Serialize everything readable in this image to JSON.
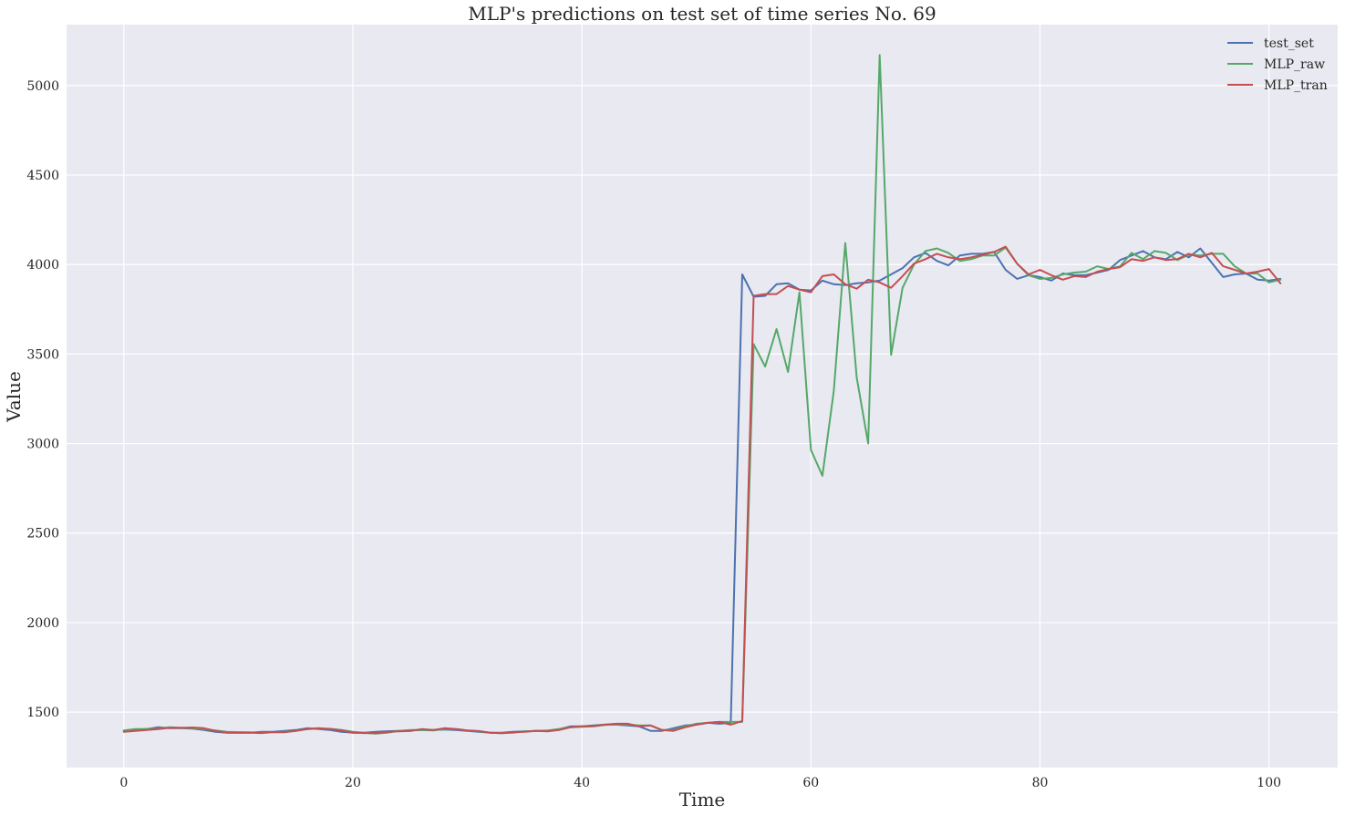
{
  "chart_data": {
    "type": "line",
    "title": "MLP's predictions on test set of time series No. 69",
    "xlabel": "Time",
    "ylabel": "Value",
    "xlim": [
      -5,
      106
    ],
    "ylim": [
      1190,
      5340
    ],
    "xticks": [
      0,
      20,
      40,
      60,
      80,
      100
    ],
    "yticks": [
      1500,
      2000,
      2500,
      3000,
      3500,
      4000,
      4500,
      5000
    ],
    "grid": true,
    "legend_position": "top-right",
    "background": "#e9e9f1",
    "x": [
      0,
      1,
      2,
      3,
      4,
      5,
      6,
      7,
      8,
      9,
      10,
      11,
      12,
      13,
      14,
      15,
      16,
      17,
      18,
      19,
      20,
      21,
      22,
      23,
      24,
      25,
      26,
      27,
      28,
      29,
      30,
      31,
      32,
      33,
      34,
      35,
      36,
      37,
      38,
      39,
      40,
      41,
      42,
      43,
      44,
      45,
      46,
      47,
      48,
      49,
      50,
      51,
      52,
      53,
      54,
      55,
      56,
      57,
      58,
      59,
      60,
      61,
      62,
      63,
      64,
      65,
      66,
      67,
      68,
      69,
      70,
      71,
      72,
      73,
      74,
      75,
      76,
      77,
      78,
      79,
      80,
      81,
      82,
      83,
      84,
      85,
      86,
      87,
      88,
      89,
      90,
      91,
      92,
      93,
      94,
      95,
      96,
      97,
      98,
      99,
      100,
      101
    ],
    "series": [
      {
        "name": "test_set",
        "color": "#4c72b0",
        "values": [
          1395,
          1400,
          1405,
          1415,
          1410,
          1410,
          1408,
          1400,
          1390,
          1385,
          1385,
          1385,
          1390,
          1390,
          1395,
          1400,
          1410,
          1405,
          1400,
          1390,
          1385,
          1385,
          1390,
          1393,
          1395,
          1398,
          1400,
          1400,
          1403,
          1400,
          1395,
          1390,
          1385,
          1385,
          1390,
          1392,
          1395,
          1395,
          1405,
          1420,
          1420,
          1425,
          1430,
          1430,
          1425,
          1420,
          1395,
          1395,
          1410,
          1425,
          1430,
          1440,
          1435,
          1440,
          3945,
          3820,
          3825,
          3890,
          3895,
          3860,
          3855,
          3910,
          3890,
          3885,
          3895,
          3900,
          3910,
          3945,
          3980,
          4040,
          4065,
          4020,
          3995,
          4050,
          4060,
          4060,
          4070,
          3970,
          3920,
          3940,
          3930,
          3910,
          3950,
          3940,
          3940,
          3955,
          3970,
          4025,
          4050,
          4075,
          4040,
          4030,
          4070,
          4040,
          4090,
          4010,
          3930,
          3945,
          3950,
          3915,
          3910,
          3920
        ]
      },
      {
        "name": "MLP_raw",
        "color": "#55a868",
        "values": [
          1398,
          1405,
          1406,
          1408,
          1415,
          1412,
          1410,
          1405,
          1398,
          1390,
          1388,
          1387,
          1385,
          1388,
          1390,
          1395,
          1405,
          1408,
          1407,
          1400,
          1390,
          1385,
          1380,
          1385,
          1395,
          1400,
          1400,
          1398,
          1405,
          1405,
          1398,
          1392,
          1385,
          1382,
          1385,
          1392,
          1395,
          1398,
          1405,
          1415,
          1418,
          1420,
          1428,
          1432,
          1430,
          1425,
          1425,
          1400,
          1400,
          1420,
          1435,
          1440,
          1445,
          1445,
          1445,
          3555,
          3430,
          3640,
          3400,
          3845,
          2965,
          2820,
          3295,
          4120,
          3370,
          3000,
          5170,
          3495,
          3870,
          4000,
          4075,
          4090,
          4065,
          4020,
          4030,
          4050,
          4050,
          4095,
          4005,
          3940,
          3920,
          3925,
          3945,
          3955,
          3960,
          3990,
          3975,
          3990,
          4065,
          4030,
          4075,
          4065,
          4025,
          4055,
          4050,
          4060,
          4060,
          3990,
          3950,
          3950,
          3900,
          3915
        ]
      },
      {
        "name": "MLP_tran",
        "color": "#c44e52",
        "values": [
          1390,
          1395,
          1400,
          1405,
          1412,
          1412,
          1414,
          1410,
          1395,
          1385,
          1385,
          1385,
          1383,
          1388,
          1387,
          1395,
          1405,
          1410,
          1405,
          1398,
          1385,
          1383,
          1382,
          1390,
          1392,
          1394,
          1405,
          1400,
          1410,
          1405,
          1398,
          1394,
          1385,
          1382,
          1388,
          1390,
          1395,
          1392,
          1400,
          1415,
          1420,
          1422,
          1430,
          1435,
          1435,
          1420,
          1425,
          1400,
          1395,
          1415,
          1430,
          1440,
          1445,
          1430,
          1450,
          3825,
          3835,
          3835,
          3880,
          3860,
          3845,
          3935,
          3945,
          3890,
          3865,
          3915,
          3900,
          3870,
          3935,
          4005,
          4030,
          4060,
          4040,
          4030,
          4040,
          4055,
          4070,
          4100,
          4005,
          3945,
          3970,
          3940,
          3915,
          3935,
          3930,
          3960,
          3975,
          3985,
          4030,
          4020,
          4040,
          4025,
          4030,
          4060,
          4040,
          4065,
          3990,
          3970,
          3950,
          3960,
          3975,
          3895
        ]
      }
    ]
  }
}
